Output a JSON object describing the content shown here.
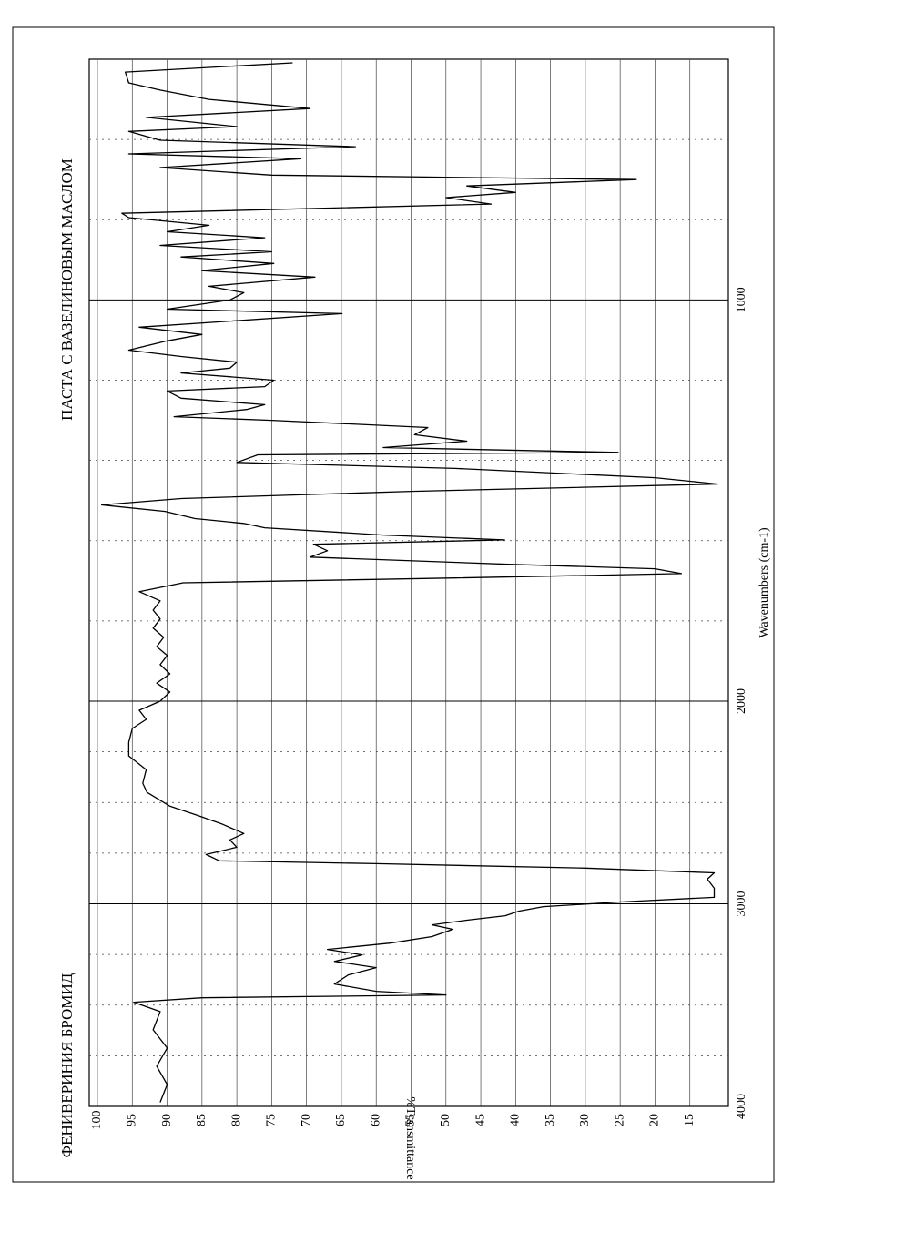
{
  "chart_data": {
    "type": "line",
    "title": "ФЕНИВЕРИНИЯ БРОМИД",
    "subtitle": "ПАСТА С ВАЗЕЛИНОВЫМ МАСЛОМ",
    "x_label": "Wavenumbers (cm-1)",
    "y_label": "%Transmittance",
    "xlim": [
      4000,
      400
    ],
    "xticks": [
      4000,
      3000,
      2000,
      1000
    ],
    "x_minor_ticks": [
      3750,
      3500,
      3250,
      2750,
      2500,
      2250,
      1800,
      1600,
      1400,
      1200,
      800,
      600
    ],
    "x_scale_change": 2000,
    "ylim": [
      10,
      100
    ],
    "yticks": [
      100,
      95,
      90,
      85,
      80,
      75,
      70,
      65,
      60,
      55,
      50,
      45,
      40,
      35,
      30,
      25,
      20,
      15
    ],
    "grid": true,
    "x": [
      3980,
      3892,
      3802,
      3712,
      3622,
      3532,
      3486,
      3464,
      3450,
      3432,
      3396,
      3351,
      3315,
      3284,
      3252,
      3225,
      3194,
      3162,
      3126,
      3104,
      3081,
      3059,
      3036,
      3014,
      2991,
      2968,
      2923,
      2878,
      2847,
      2824,
      2802,
      2788,
      2757,
      2721,
      2685,
      2653,
      2608,
      2563,
      2518,
      2450,
      2405,
      2338,
      2270,
      2203,
      2135,
      2090,
      2045,
      2000,
      1977,
      1955,
      1932,
      1909,
      1886,
      1864,
      1841,
      1818,
      1795,
      1773,
      1750,
      1727,
      1705,
      1693,
      1682,
      1670,
      1659,
      1641,
      1625,
      1609,
      1598,
      1586,
      1568,
      1557,
      1545,
      1527,
      1511,
      1495,
      1477,
      1459,
      1443,
      1420,
      1405,
      1386,
      1380,
      1368,
      1352,
      1336,
      1318,
      1300,
      1291,
      1273,
      1261,
      1245,
      1227,
      1216,
      1200,
      1182,
      1170,
      1155,
      1141,
      1125,
      1102,
      1086,
      1068,
      1034,
      1023,
      1000,
      982,
      966,
      943,
      927,
      909,
      893,
      880,
      864,
      845,
      830,
      814,
      795,
      784,
      761,
      745,
      732,
      716,
      700,
      689,
      670,
      648,
      636,
      618,
      602,
      580,
      568,
      545,
      523,
      500,
      477,
      459,
      432,
      409
    ],
    "series": [
      {
        "color": "#000000",
        "values": [
          91,
          90,
          91.5,
          90,
          92,
          91,
          94.8,
          85,
          50,
          60,
          66,
          64,
          60,
          66,
          62,
          67,
          58,
          52,
          49,
          52,
          47,
          41.5,
          39.5,
          36,
          25,
          11.5,
          11.5,
          12.5,
          11.5,
          30,
          60,
          82.5,
          84.4,
          80,
          81,
          79,
          82,
          85.7,
          89.6,
          92.9,
          93.5,
          93,
          95.5,
          95.5,
          95,
          93,
          94,
          91,
          89.6,
          91.5,
          89.6,
          91,
          90,
          91.5,
          90.5,
          92,
          91,
          92,
          91,
          94,
          87.7,
          48.7,
          16.2,
          20,
          41,
          69.5,
          67,
          69,
          41.6,
          59,
          76,
          79,
          86,
          90.3,
          99.4,
          88,
          55,
          11,
          20,
          48.7,
          80,
          77,
          25.3,
          59,
          47,
          54.5,
          52.6,
          75,
          89,
          78.6,
          76,
          88,
          90,
          76,
          74.7,
          88,
          81,
          80,
          88,
          95.5,
          90,
          85,
          94,
          64.9,
          90,
          81,
          79,
          84,
          68.8,
          85,
          74.7,
          88,
          75,
          91,
          76,
          90,
          84,
          95.5,
          96.5,
          43.5,
          50,
          40,
          47,
          22.7,
          75,
          91,
          70.8,
          95.5,
          63,
          91,
          95.5,
          80,
          93,
          69.5,
          84,
          91,
          95.5,
          96,
          72
        ]
      }
    ]
  }
}
